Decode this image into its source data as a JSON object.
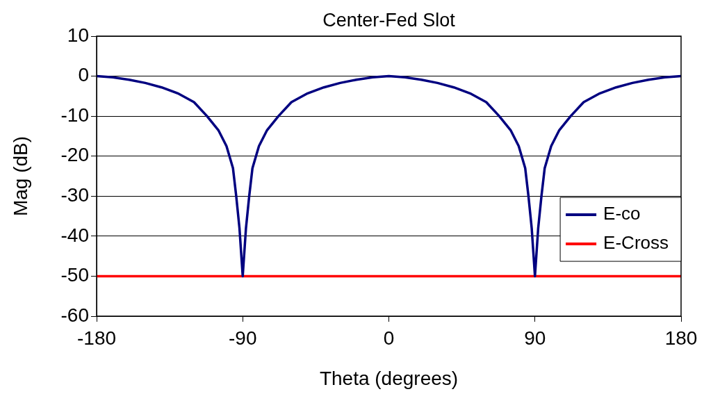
{
  "chart_data": {
    "type": "line",
    "title": "Center-Fed Slot",
    "xlabel": "Theta (degrees)",
    "ylabel": "Mag (dB)",
    "xlim": [
      -180,
      180
    ],
    "xticks": [
      -180,
      -90,
      0,
      90,
      180
    ],
    "ylim": [
      -60,
      10
    ],
    "yticks": [
      -60,
      -50,
      -40,
      -30,
      -20,
      -10,
      0,
      10
    ],
    "grid": "y",
    "legend": "right",
    "marker": "none",
    "line_style": "solid",
    "series": [
      {
        "name": "E-co",
        "color": "#000080",
        "x": [
          -180,
          -170,
          -160,
          -150,
          -140,
          -130,
          -120,
          -112,
          -105,
          -100,
          -96,
          -94,
          -92,
          -90,
          -88,
          -86,
          -84,
          -80,
          -75,
          -68,
          -60,
          -50,
          -40,
          -30,
          -20,
          -10,
          0,
          10,
          20,
          30,
          40,
          50,
          60,
          68,
          75,
          80,
          84,
          86,
          88,
          90,
          92,
          94,
          96,
          100,
          105,
          112,
          120,
          130,
          140,
          150,
          160,
          170,
          180
        ],
        "values": [
          0,
          -0.3,
          -0.9,
          -1.7,
          -2.8,
          -4.3,
          -6.5,
          -10,
          -13.5,
          -17.5,
          -23,
          -30,
          -38,
          -50,
          -38,
          -30,
          -23,
          -17.5,
          -13.5,
          -10,
          -6.5,
          -4.3,
          -2.8,
          -1.7,
          -0.9,
          -0.3,
          0,
          -0.3,
          -0.9,
          -1.7,
          -2.8,
          -4.3,
          -6.5,
          -10,
          -13.5,
          -17.5,
          -23,
          -30,
          -38,
          -50,
          -38,
          -30,
          -23,
          -17.5,
          -13.5,
          -10,
          -6.5,
          -4.3,
          -2.8,
          -1.7,
          -0.9,
          -0.3,
          0
        ]
      },
      {
        "name": "E-Cross",
        "color": "#ff0000",
        "x": [
          -180,
          180
        ],
        "values": [
          -50,
          -50
        ]
      }
    ]
  }
}
